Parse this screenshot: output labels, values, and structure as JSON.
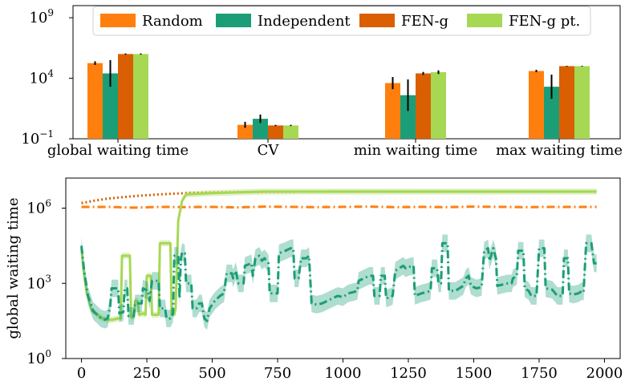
{
  "colors": {
    "random": "#ff7f0e",
    "independent": "#1b9e77",
    "feng": "#d95f02",
    "feng_pt": "#a6d854"
  },
  "chart_data": [
    {
      "type": "bar",
      "yscale": "log",
      "ylim_log10": [
        -1,
        10
      ],
      "yticks": [
        {
          "exp": -1,
          "label_base": "10",
          "label_exp": "−1"
        },
        {
          "exp": 4,
          "label_base": "10",
          "label_exp": "4"
        },
        {
          "exp": 9,
          "label_base": "10",
          "label_exp": "9"
        }
      ],
      "categories": [
        "global waiting time",
        "CV",
        "min waiting time",
        "max waiting time"
      ],
      "legend": {
        "placement": "top-center",
        "entries": [
          "Random",
          "Independent",
          "FEN-g",
          "FEN-g pt."
        ]
      },
      "series": [
        {
          "name": "Random",
          "color_key": "random",
          "values_log10": [
            5.25,
            0.15,
            3.6,
            4.6
          ],
          "err_log10": [
            0.15,
            0.25,
            0.5,
            0.1
          ]
        },
        {
          "name": "Independent",
          "color_key": "independent",
          "values_log10": [
            4.4,
            0.65,
            2.6,
            3.3
          ],
          "err_log10": [
            1.1,
            0.35,
            1.3,
            1.0
          ]
        },
        {
          "name": "FEN-g",
          "color_key": "feng",
          "values_log10": [
            6.0,
            0.1,
            4.4,
            5.0
          ],
          "err_log10": [
            0.05,
            0.05,
            0.12,
            0.03
          ]
        },
        {
          "name": "FEN-g pt.",
          "color_key": "feng_pt",
          "values_log10": [
            6.0,
            0.1,
            4.5,
            5.0
          ],
          "err_log10": [
            0.05,
            0.05,
            0.15,
            0.03
          ]
        }
      ]
    },
    {
      "type": "line",
      "yscale": "log",
      "ylim_log10": [
        0,
        7.2
      ],
      "xlim": [
        -60,
        2060
      ],
      "ylabel": "global waiting time",
      "xticks": [
        0,
        250,
        500,
        750,
        1000,
        1250,
        1500,
        1750,
        2000
      ],
      "yticks": [
        {
          "exp": 0,
          "label_base": "10",
          "label_exp": "0"
        },
        {
          "exp": 3,
          "label_base": "10",
          "label_exp": "3"
        },
        {
          "exp": 6,
          "label_base": "10",
          "label_exp": "6"
        }
      ],
      "series": [
        {
          "name": "Random",
          "color_key": "random",
          "style": "dashdot",
          "points": [
            [
              0,
              6.05
            ],
            [
              100,
              6.05
            ],
            [
              200,
              6.02
            ],
            [
              300,
              6.05
            ],
            [
              400,
              6.04
            ],
            [
              500,
              6.05
            ],
            [
              600,
              6.03
            ],
            [
              700,
              6.06
            ],
            [
              800,
              6.05
            ],
            [
              900,
              6.04
            ],
            [
              1000,
              6.05
            ],
            [
              1100,
              6.06
            ],
            [
              1200,
              6.04
            ],
            [
              1300,
              6.05
            ],
            [
              1400,
              6.04
            ],
            [
              1500,
              6.06
            ],
            [
              1600,
              6.05
            ],
            [
              1700,
              6.04
            ],
            [
              1800,
              6.05
            ],
            [
              1900,
              6.05
            ],
            [
              1970,
              6.05
            ]
          ]
        },
        {
          "name": "FEN-g",
          "color_key": "feng",
          "style": "dotted",
          "points": [
            [
              0,
              6.2
            ],
            [
              50,
              6.3
            ],
            [
              100,
              6.38
            ],
            [
              200,
              6.48
            ],
            [
              300,
              6.55
            ],
            [
              400,
              6.6
            ],
            [
              500,
              6.62
            ],
            [
              700,
              6.65
            ],
            [
              1000,
              6.66
            ],
            [
              1500,
              6.66
            ],
            [
              1970,
              6.66
            ]
          ]
        },
        {
          "name": "FEN-g pt.",
          "color_key": "feng_pt",
          "style": "solid",
          "band": 0.12,
          "points": [
            [
              0,
              4.4
            ],
            [
              8,
              3.5
            ],
            [
              20,
              2.6
            ],
            [
              40,
              1.9
            ],
            [
              60,
              1.75
            ],
            [
              80,
              1.6
            ],
            [
              100,
              1.55
            ],
            [
              120,
              1.55
            ],
            [
              140,
              1.6
            ],
            [
              150,
              1.6
            ],
            [
              155,
              4.1
            ],
            [
              185,
              4.1
            ],
            [
              190,
              1.65
            ],
            [
              200,
              1.65
            ],
            [
              205,
              2.3
            ],
            [
              215,
              2.3
            ],
            [
              220,
              1.75
            ],
            [
              235,
              1.8
            ],
            [
              245,
              1.75
            ],
            [
              250,
              3.3
            ],
            [
              265,
              3.3
            ],
            [
              270,
              1.75
            ],
            [
              295,
              1.75
            ],
            [
              300,
              4.6
            ],
            [
              340,
              4.6
            ],
            [
              345,
              1.75
            ],
            [
              355,
              1.75
            ],
            [
              360,
              2.0
            ],
            [
              370,
              5.5
            ],
            [
              385,
              6.3
            ],
            [
              400,
              6.55
            ],
            [
              500,
              6.6
            ],
            [
              700,
              6.66
            ],
            [
              1000,
              6.66
            ],
            [
              1970,
              6.66
            ]
          ]
        },
        {
          "name": "Independent",
          "color_key": "independent",
          "style": "dashdot",
          "band": 0.35,
          "points": [
            [
              0,
              4.5
            ],
            [
              10,
              3.5
            ],
            [
              25,
              2.5
            ],
            [
              45,
              1.9
            ],
            [
              60,
              1.75
            ],
            [
              75,
              1.6
            ],
            [
              90,
              1.55
            ],
            [
              100,
              1.6
            ],
            [
              110,
              2.1
            ],
            [
              115,
              2.8
            ],
            [
              140,
              2.8
            ],
            [
              145,
              1.8
            ],
            [
              160,
              1.85
            ],
            [
              165,
              2.8
            ],
            [
              175,
              2.8
            ],
            [
              180,
              1.7
            ],
            [
              200,
              1.7
            ],
            [
              205,
              2.2
            ],
            [
              230,
              2.2
            ],
            [
              235,
              2.8
            ],
            [
              255,
              2.7
            ],
            [
              260,
              2.3
            ],
            [
              270,
              3.1
            ],
            [
              295,
              3.1
            ],
            [
              300,
              2.0
            ],
            [
              320,
              2.0
            ],
            [
              325,
              1.6
            ],
            [
              340,
              1.6
            ],
            [
              350,
              1.8
            ],
            [
              355,
              4.1
            ],
            [
              370,
              4.1
            ],
            [
              375,
              2.4
            ],
            [
              380,
              4.0
            ],
            [
              385,
              4.25
            ],
            [
              395,
              4.2
            ],
            [
              400,
              3.0
            ],
            [
              420,
              3.0
            ],
            [
              425,
              2.0
            ],
            [
              440,
              2.0
            ],
            [
              450,
              2.2
            ],
            [
              460,
              2.2
            ],
            [
              470,
              1.6
            ],
            [
              480,
              1.5
            ],
            [
              490,
              2.0
            ],
            [
              510,
              2.3
            ],
            [
              530,
              2.5
            ],
            [
              545,
              2.6
            ],
            [
              555,
              3.4
            ],
            [
              575,
              3.4
            ],
            [
              580,
              3.2
            ],
            [
              590,
              3.5
            ],
            [
              600,
              3.0
            ],
            [
              620,
              3.0
            ],
            [
              625,
              3.7
            ],
            [
              650,
              3.8
            ],
            [
              655,
              3.3
            ],
            [
              665,
              4.0
            ],
            [
              680,
              4.1
            ],
            [
              690,
              3.9
            ],
            [
              700,
              4.0
            ],
            [
              715,
              3.8
            ],
            [
              720,
              2.6
            ],
            [
              750,
              2.6
            ],
            [
              755,
              4.2
            ],
            [
              780,
              4.3
            ],
            [
              800,
              4.4
            ],
            [
              810,
              4.4
            ],
            [
              815,
              3.2
            ],
            [
              830,
              3.2
            ],
            [
              840,
              4.0
            ],
            [
              860,
              4.0
            ],
            [
              870,
              4.1
            ],
            [
              880,
              2.2
            ],
            [
              900,
              2.15
            ],
            [
              920,
              2.2
            ],
            [
              940,
              2.3
            ],
            [
              960,
              2.4
            ],
            [
              980,
              2.5
            ],
            [
              1000,
              2.45
            ],
            [
              1020,
              2.6
            ],
            [
              1040,
              2.65
            ],
            [
              1055,
              2.7
            ],
            [
              1060,
              3.1
            ],
            [
              1080,
              3.2
            ],
            [
              1100,
              3.3
            ],
            [
              1115,
              3.3
            ],
            [
              1120,
              2.5
            ],
            [
              1140,
              2.5
            ],
            [
              1145,
              3.3
            ],
            [
              1160,
              3.3
            ],
            [
              1165,
              2.4
            ],
            [
              1180,
              2.45
            ],
            [
              1190,
              2.5
            ],
            [
              1200,
              3.5
            ],
            [
              1215,
              3.6
            ],
            [
              1230,
              3.7
            ],
            [
              1240,
              3.6
            ],
            [
              1250,
              3.65
            ],
            [
              1270,
              3.7
            ],
            [
              1275,
              2.5
            ],
            [
              1300,
              2.6
            ],
            [
              1320,
              2.65
            ],
            [
              1335,
              2.7
            ],
            [
              1340,
              3.6
            ],
            [
              1360,
              3.6
            ],
            [
              1365,
              3.0
            ],
            [
              1375,
              3.0
            ],
            [
              1380,
              4.6
            ],
            [
              1400,
              4.6
            ],
            [
              1405,
              2.7
            ],
            [
              1430,
              2.7
            ],
            [
              1460,
              2.9
            ],
            [
              1470,
              3.2
            ],
            [
              1480,
              3.3
            ],
            [
              1490,
              2.9
            ],
            [
              1510,
              2.8
            ],
            [
              1530,
              2.85
            ],
            [
              1540,
              4.3
            ],
            [
              1555,
              4.4
            ],
            [
              1560,
              3.9
            ],
            [
              1575,
              4.4
            ],
            [
              1585,
              4.0
            ],
            [
              1590,
              2.9
            ],
            [
              1610,
              2.95
            ],
            [
              1630,
              3.0
            ],
            [
              1645,
              3.0
            ],
            [
              1650,
              3.2
            ],
            [
              1665,
              3.3
            ],
            [
              1670,
              4.3
            ],
            [
              1690,
              4.3
            ],
            [
              1695,
              2.8
            ],
            [
              1710,
              2.7
            ],
            [
              1720,
              2.5
            ],
            [
              1740,
              2.5
            ],
            [
              1750,
              4.4
            ],
            [
              1770,
              4.4
            ],
            [
              1775,
              2.8
            ],
            [
              1800,
              2.75
            ],
            [
              1820,
              2.5
            ],
            [
              1840,
              2.5
            ],
            [
              1845,
              4.0
            ],
            [
              1860,
              4.0
            ],
            [
              1865,
              2.6
            ],
            [
              1880,
              2.55
            ],
            [
              1900,
              2.6
            ],
            [
              1915,
              2.7
            ],
            [
              1920,
              2.65
            ],
            [
              1930,
              4.6
            ],
            [
              1950,
              4.6
            ],
            [
              1960,
              3.8
            ],
            [
              1970,
              3.8
            ]
          ]
        }
      ]
    }
  ]
}
